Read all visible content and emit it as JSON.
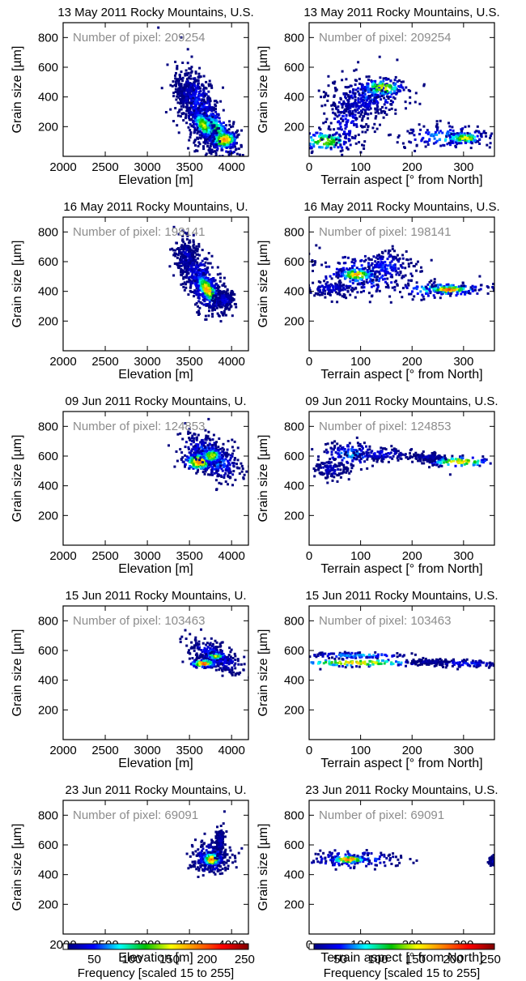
{
  "chart_data": [
    {
      "type": "heatmap",
      "title": "13 May  2011 Rocky Mountains, U.S.",
      "pixel_text": "Number of pixel: 209254",
      "xlabel": "Elevation [m]",
      "ylabel": "Grain size [µm]",
      "xlim": [
        2000,
        4200
      ],
      "ylim": [
        0,
        900
      ],
      "xticks": [
        "2000",
        "2500",
        "3000",
        "3500",
        "4000"
      ],
      "yticks": [
        "200",
        "400",
        "600",
        "800"
      ],
      "blobs": [
        {
          "x": 3450,
          "y": 440,
          "sx": 90,
          "sy": 70,
          "rot": -25,
          "level": 30
        },
        {
          "x": 3600,
          "y": 330,
          "sx": 200,
          "sy": 110,
          "rot": -55,
          "level": 55
        },
        {
          "x": 3800,
          "y": 180,
          "sx": 160,
          "sy": 70,
          "rot": -30,
          "level": 110
        },
        {
          "x": 3900,
          "y": 120,
          "sx": 90,
          "sy": 35,
          "rot": 0,
          "level": 190
        },
        {
          "x": 3650,
          "y": 220,
          "sx": 80,
          "sy": 40,
          "rot": -30,
          "level": 150
        }
      ]
    },
    {
      "type": "heatmap",
      "title": "13 May  2011 Rocky Mountains, U.S.",
      "pixel_text": "Number of pixel: 209254",
      "xlabel": "Terrain aspect [° from North]",
      "ylabel": "Grain size [µm]",
      "xlim": [
        0,
        360
      ],
      "ylim": [
        0,
        900
      ],
      "xticks": [
        "0",
        "100",
        "200",
        "300"
      ],
      "yticks": [
        "200",
        "400",
        "600",
        "800"
      ],
      "blobs": [
        {
          "x": 30,
          "y": 110,
          "sx": 30,
          "sy": 40,
          "rot": 0,
          "level": 140
        },
        {
          "x": 70,
          "y": 250,
          "sx": 25,
          "sy": 150,
          "rot": 0,
          "level": 45
        },
        {
          "x": 120,
          "y": 420,
          "sx": 45,
          "sy": 80,
          "rot": 0,
          "level": 60
        },
        {
          "x": 140,
          "y": 470,
          "sx": 25,
          "sy": 35,
          "rot": 0,
          "level": 150
        },
        {
          "x": 100,
          "y": 360,
          "sx": 30,
          "sy": 60,
          "rot": 0,
          "level": 40
        },
        {
          "x": 270,
          "y": 140,
          "sx": 55,
          "sy": 45,
          "rot": 0,
          "level": 80
        },
        {
          "x": 300,
          "y": 130,
          "sx": 20,
          "sy": 20,
          "rot": 0,
          "level": 160
        }
      ]
    },
    {
      "type": "heatmap",
      "title": "16 May  2011 Rocky Mountains, U.",
      "pixel_text": "Number of pixel: 198141",
      "xlabel": "Elevation [m]",
      "ylabel": "Grain size [µm]",
      "xlim": [
        2000,
        4200
      ],
      "ylim": [
        0,
        900
      ],
      "xticks": [
        "2000",
        "2500",
        "3000",
        "3500",
        "4000"
      ],
      "yticks": [
        "200",
        "400",
        "600",
        "800"
      ],
      "blobs": [
        {
          "x": 3450,
          "y": 640,
          "sx": 70,
          "sy": 70,
          "rot": 0,
          "level": 35
        },
        {
          "x": 3650,
          "y": 460,
          "sx": 180,
          "sy": 90,
          "rot": -40,
          "level": 60
        },
        {
          "x": 3700,
          "y": 420,
          "sx": 90,
          "sy": 40,
          "rot": -35,
          "level": 180
        },
        {
          "x": 3900,
          "y": 350,
          "sx": 70,
          "sy": 30,
          "rot": 0,
          "level": 45
        }
      ]
    },
    {
      "type": "heatmap",
      "title": "16 May  2011 Rocky Mountains, U.S.",
      "pixel_text": "Number of pixel: 198141",
      "xlabel": "Terrain aspect [° from North]",
      "ylabel": "Grain size [µm]",
      "xlim": [
        0,
        360
      ],
      "ylim": [
        0,
        900
      ],
      "xticks": [
        "0",
        "100",
        "200",
        "300"
      ],
      "yticks": [
        "200",
        "400",
        "600",
        "800"
      ],
      "blobs": [
        {
          "x": 100,
          "y": 520,
          "sx": 60,
          "sy": 80,
          "rot": 0,
          "level": 70
        },
        {
          "x": 40,
          "y": 430,
          "sx": 30,
          "sy": 30,
          "rot": 0,
          "level": 40
        },
        {
          "x": 150,
          "y": 580,
          "sx": 25,
          "sy": 60,
          "rot": 0,
          "level": 55
        },
        {
          "x": 90,
          "y": 520,
          "sx": 20,
          "sy": 25,
          "rot": 0,
          "level": 180
        },
        {
          "x": 260,
          "y": 420,
          "sx": 55,
          "sy": 30,
          "rot": 0,
          "level": 110
        },
        {
          "x": 270,
          "y": 420,
          "sx": 25,
          "sy": 15,
          "rot": 0,
          "level": 200
        }
      ]
    },
    {
      "type": "heatmap",
      "title": "09 Jun  2011 Rocky Mountains, U.",
      "pixel_text": "Number of pixel: 124853",
      "xlabel": "Elevation [m]",
      "ylabel": "Grain size [µm]",
      "xlim": [
        2000,
        4200
      ],
      "ylim": [
        0,
        900
      ],
      "xticks": [
        "2000",
        "2500",
        "3000",
        "3500",
        "4000"
      ],
      "yticks": [
        "200",
        "400",
        "600",
        "800"
      ],
      "blobs": [
        {
          "x": 3750,
          "y": 600,
          "sx": 200,
          "sy": 70,
          "rot": -15,
          "level": 80
        },
        {
          "x": 3600,
          "y": 570,
          "sx": 100,
          "sy": 35,
          "rot": 0,
          "level": 190
        },
        {
          "x": 3750,
          "y": 610,
          "sx": 80,
          "sy": 30,
          "rot": 0,
          "level": 150
        }
      ]
    },
    {
      "type": "heatmap",
      "title": "09 Jun  2011 Rocky Mountains, U.S.",
      "pixel_text": "Number of pixel: 124853",
      "xlabel": "Terrain aspect [° from North]",
      "ylabel": "Grain size [µm]",
      "xlim": [
        0,
        360
      ],
      "ylim": [
        0,
        900
      ],
      "xticks": [
        "0",
        "100",
        "200",
        "300"
      ],
      "yticks": [
        "200",
        "400",
        "600",
        "800"
      ],
      "blobs": [
        {
          "x": 80,
          "y": 620,
          "sx": 35,
          "sy": 50,
          "rot": 0,
          "level": 70
        },
        {
          "x": 140,
          "y": 620,
          "sx": 35,
          "sy": 25,
          "rot": 0,
          "level": 45
        },
        {
          "x": 40,
          "y": 520,
          "sx": 20,
          "sy": 40,
          "rot": 0,
          "level": 35
        },
        {
          "x": 290,
          "y": 570,
          "sx": 35,
          "sy": 20,
          "rot": 0,
          "level": 170
        },
        {
          "x": 230,
          "y": 600,
          "sx": 20,
          "sy": 15,
          "rot": 0,
          "level": 35
        }
      ]
    },
    {
      "type": "heatmap",
      "title": "15 Jun  2011 Rocky Mountains, U.",
      "pixel_text": "Number of pixel: 103463",
      "xlabel": "Elevation [m]",
      "ylabel": "Grain size [µm]",
      "xlim": [
        2000,
        4200
      ],
      "ylim": [
        0,
        900
      ],
      "xticks": [
        "2000",
        "2500",
        "3000",
        "3500",
        "4000"
      ],
      "yticks": [
        "200",
        "400",
        "600",
        "800"
      ],
      "blobs": [
        {
          "x": 3800,
          "y": 570,
          "sx": 180,
          "sy": 45,
          "rot": -15,
          "level": 60
        },
        {
          "x": 3650,
          "y": 520,
          "sx": 90,
          "sy": 15,
          "rot": 0,
          "level": 200
        },
        {
          "x": 3800,
          "y": 570,
          "sx": 70,
          "sy": 12,
          "rot": 0,
          "level": 150
        }
      ]
    },
    {
      "type": "heatmap",
      "title": "15 Jun  2011 Rocky Mountains, U.S.",
      "pixel_text": "Number of pixel: 103463",
      "xlabel": "Terrain aspect [° from North]",
      "ylabel": "Grain size [µm]",
      "xlim": [
        0,
        360
      ],
      "ylim": [
        0,
        900
      ],
      "xticks": [
        "0",
        "100",
        "200",
        "300"
      ],
      "yticks": [
        "200",
        "400",
        "600",
        "800"
      ],
      "blobs": [
        {
          "x": 90,
          "y": 525,
          "sx": 70,
          "sy": 14,
          "rot": 0,
          "level": 170
        },
        {
          "x": 90,
          "y": 575,
          "sx": 60,
          "sy": 12,
          "rot": 0,
          "level": 80
        },
        {
          "x": 300,
          "y": 520,
          "sx": 45,
          "sy": 14,
          "rot": 0,
          "level": 55
        },
        {
          "x": 230,
          "y": 530,
          "sx": 20,
          "sy": 10,
          "rot": 0,
          "level": 30
        }
      ]
    },
    {
      "type": "heatmap",
      "title": "23 Jun  2011 Rocky Mountains, U.",
      "pixel_text": "Number of pixel: 69091",
      "xlabel": "Elevation [m]",
      "ylabel": "Grain size [µm]",
      "xlim": [
        2000,
        4200
      ],
      "ylim": [
        0,
        900
      ],
      "xticks": [
        "2000",
        "2500",
        "3000",
        "3500",
        "4000"
      ],
      "yticks": [
        "200",
        "400",
        "600",
        "800"
      ],
      "blobs": [
        {
          "x": 3750,
          "y": 520,
          "sx": 120,
          "sy": 60,
          "rot": 0,
          "level": 80
        },
        {
          "x": 3750,
          "y": 510,
          "sx": 60,
          "sy": 25,
          "rot": 0,
          "level": 200
        },
        {
          "x": 3850,
          "y": 640,
          "sx": 30,
          "sy": 50,
          "rot": 0,
          "level": 30
        }
      ]
    },
    {
      "type": "heatmap",
      "title": "23 Jun  2011 Rocky Mountains, U.S.",
      "pixel_text": "Number of pixel: 69091",
      "xlabel": "Terrain aspect [° from North]",
      "ylabel": "Grain size [µm]",
      "xlim": [
        0,
        360
      ],
      "ylim": [
        0,
        900
      ],
      "xticks": [
        "0",
        "100",
        "200",
        "300"
      ],
      "yticks": [
        "200",
        "400",
        "600",
        "800"
      ],
      "blobs": [
        {
          "x": 80,
          "y": 510,
          "sx": 55,
          "sy": 35,
          "rot": 0,
          "level": 80
        },
        {
          "x": 75,
          "y": 510,
          "sx": 20,
          "sy": 15,
          "rot": 0,
          "level": 200
        },
        {
          "x": 355,
          "y": 500,
          "sx": 4,
          "sy": 15,
          "rot": 0,
          "level": 30
        }
      ]
    }
  ],
  "colorbar": {
    "title": "Frequency [scaled 15 to 255]",
    "range": [
      15,
      255
    ],
    "ticks": [
      "50",
      "100",
      "150",
      "200",
      "250"
    ],
    "tick_values": [
      50,
      100,
      150,
      200,
      250
    ],
    "colormap": [
      "#000080",
      "#0000ff",
      "#00ffff",
      "#00c000",
      "#ffff00",
      "#ff8000",
      "#ff0000",
      "#800000"
    ]
  }
}
